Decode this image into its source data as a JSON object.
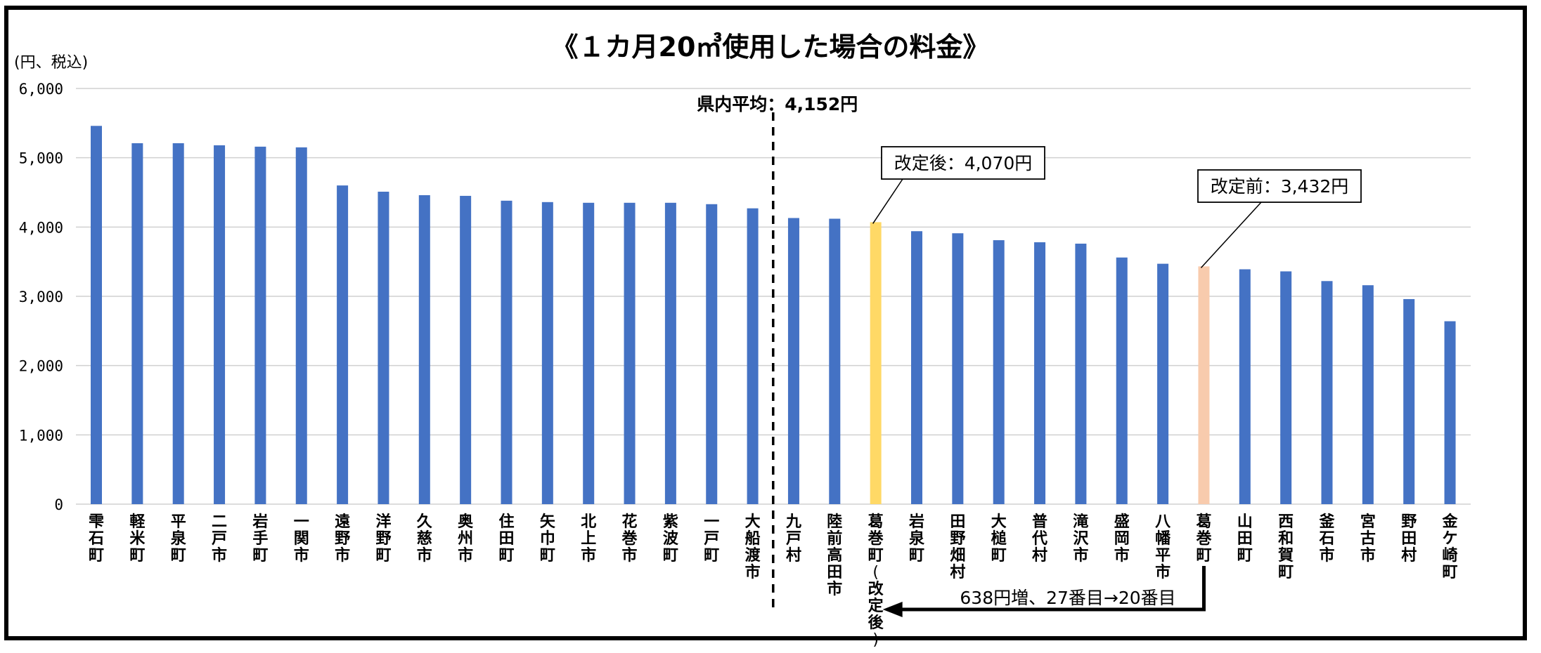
{
  "chart_data": {
    "type": "bar",
    "title": "《１カ月20㎥使用した場合の料金》",
    "ylabel": "(円、税込)",
    "ylim": [
      0,
      6000
    ],
    "yticks": [
      "0",
      "1,000",
      "2,000",
      "3,000",
      "4,000",
      "5,000",
      "6,000"
    ],
    "grid": true,
    "colors": {
      "default": "#4472C4",
      "after": "#FFD966",
      "before": "#F8CBAD"
    },
    "categories": [
      "雫石町",
      "軽米町",
      "平泉町",
      "二戸市",
      "岩手町",
      "一関市",
      "遠野市",
      "洋野町",
      "久慈市",
      "奥州市",
      "住田町",
      "矢巾町",
      "北上市",
      "花巻市",
      "紫波町",
      "一戸町",
      "大船渡市",
      "九戸村",
      "陸前高田市",
      "葛巻町(改定後)",
      "岩泉町",
      "田野畑村",
      "大槌町",
      "普代村",
      "滝沢市",
      "盛岡市",
      "八幡平市",
      "葛巻町",
      "山田町",
      "西和賀町",
      "釜石市",
      "宮古市",
      "野田村",
      "金ケ崎町"
    ],
    "values": [
      5460,
      5210,
      5210,
      5180,
      5160,
      5150,
      4600,
      4510,
      4460,
      4450,
      4380,
      4360,
      4350,
      4350,
      4350,
      4330,
      4270,
      4130,
      4120,
      4070,
      3940,
      3910,
      3810,
      3780,
      3760,
      3560,
      3470,
      3432,
      3390,
      3360,
      3220,
      3160,
      2960,
      2640
    ],
    "highlights": {
      "19": "after",
      "27": "before"
    },
    "reference_line": {
      "label": "県内平均：4,152円",
      "value": 4152,
      "position_after_index": 16
    },
    "annotations": [
      {
        "label": "改定後：4,070円",
        "target_index": 19
      },
      {
        "label": "改定前：3,432円",
        "target_index": 27
      }
    ],
    "arrow_note": {
      "label": "638円増、27番目→20番目",
      "from_index": 27,
      "to_index": 19
    }
  }
}
